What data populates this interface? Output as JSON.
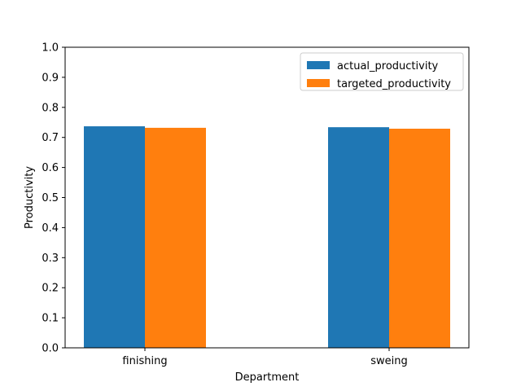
{
  "chart_data": {
    "type": "bar",
    "title": "",
    "xlabel": "Department",
    "ylabel": "Productivity",
    "categories": [
      "finishing",
      "sweing"
    ],
    "series": [
      {
        "name": "actual_productivity",
        "values": [
          0.737,
          0.734
        ],
        "color": "#1f77b4"
      },
      {
        "name": "targeted_productivity",
        "values": [
          0.732,
          0.729
        ],
        "color": "#ff7f0e"
      }
    ],
    "ylim": [
      0,
      1.0
    ],
    "yticks": [
      "0.0",
      "0.1",
      "0.2",
      "0.3",
      "0.4",
      "0.5",
      "0.6",
      "0.7",
      "0.8",
      "0.9",
      "1.0"
    ],
    "grid": false,
    "legend_position": "top-right"
  }
}
